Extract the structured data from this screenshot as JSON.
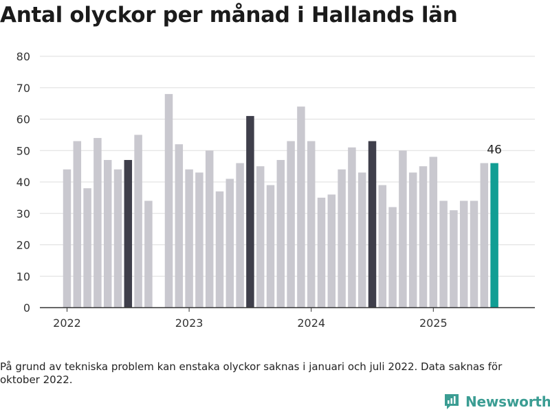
{
  "title": "Antal olyckor per månad i Hallands län",
  "footnote": "På grund av tekniska problem kan enstaka olyckor saknas i januari och juli 2022. Data saknas för oktober 2022.",
  "brand": {
    "name": "Newsworthy",
    "color": "#3b9d93"
  },
  "colors": {
    "default_bar": "#c9c8cf",
    "july_bar": "#3f3f4b",
    "latest_bar": "#119e94",
    "grid": "#dddddd",
    "axis": "#333333"
  },
  "chart_data": {
    "type": "bar",
    "title": "Antal olyckor per månad i Hallands län",
    "xlabel": "",
    "ylabel": "",
    "ylim": [
      0,
      80
    ],
    "yticks": [
      0,
      10,
      20,
      30,
      40,
      50,
      60,
      70,
      80
    ],
    "xtick_labels": [
      "2022",
      "2023",
      "2024",
      "2025"
    ],
    "grid": true,
    "categories": [
      "2022-01",
      "2022-02",
      "2022-03",
      "2022-04",
      "2022-05",
      "2022-06",
      "2022-07",
      "2022-08",
      "2022-09",
      "2022-10",
      "2022-11",
      "2022-12",
      "2023-01",
      "2023-02",
      "2023-03",
      "2023-04",
      "2023-05",
      "2023-06",
      "2023-07",
      "2023-08",
      "2023-09",
      "2023-10",
      "2023-11",
      "2023-12",
      "2024-01",
      "2024-02",
      "2024-03",
      "2024-04",
      "2024-05",
      "2024-06",
      "2024-07",
      "2024-08",
      "2024-09",
      "2024-10",
      "2024-11",
      "2024-12",
      "2025-01",
      "2025-02",
      "2025-03",
      "2025-04",
      "2025-05",
      "2025-06",
      "2025-07"
    ],
    "values": [
      44,
      53,
      38,
      54,
      47,
      44,
      47,
      55,
      34,
      null,
      68,
      52,
      44,
      43,
      50,
      37,
      41,
      46,
      61,
      45,
      39,
      47,
      53,
      64,
      53,
      35,
      36,
      44,
      51,
      43,
      53,
      39,
      32,
      50,
      43,
      45,
      48,
      34,
      31,
      34,
      34,
      46,
      46
    ],
    "highlighted_months": [
      "2022-07",
      "2023-07",
      "2024-07"
    ],
    "latest": {
      "month": "2025-07",
      "label": "46"
    }
  }
}
